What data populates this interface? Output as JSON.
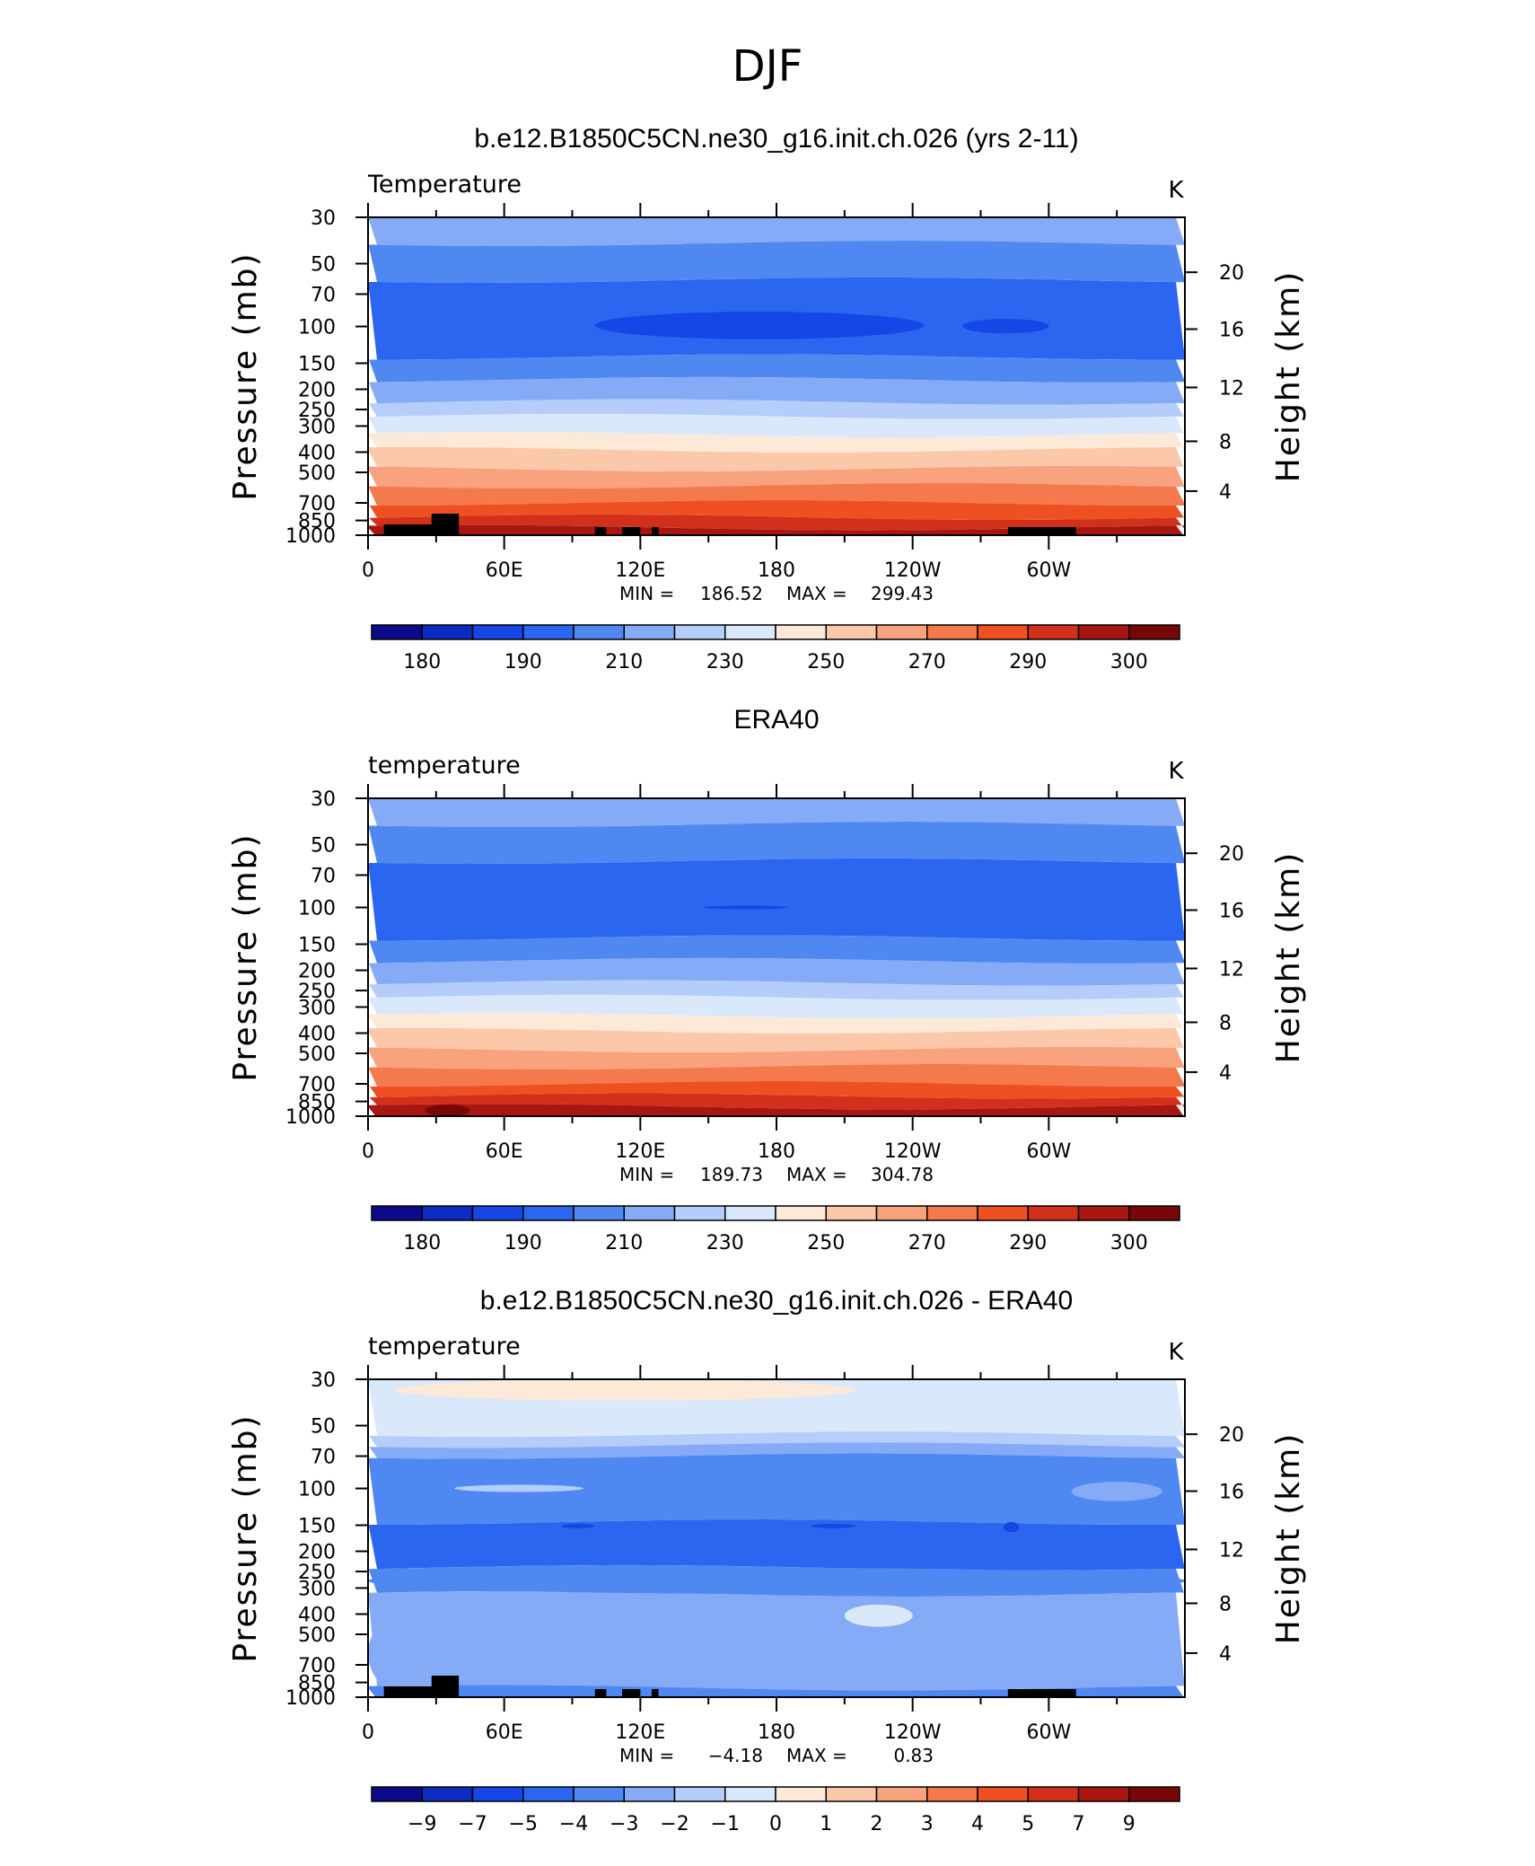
{
  "figure": {
    "title": "DJF",
    "colors": {
      "cool_to_warm": [
        "#0a0a8a",
        "#0c2bc2",
        "#1546e6",
        "#2a66f0",
        "#5088f2",
        "#86abf6",
        "#b4cdfa",
        "#dae8fc",
        "#fde9d8",
        "#fcc8aa",
        "#f8a27e",
        "#f47a4e",
        "#ef5021",
        "#d2301a",
        "#a81612",
        "#780808"
      ]
    }
  },
  "chart_data": [
    {
      "type": "contour",
      "title": "b.e12.B1850C5CN.ne30_g16.init.ch.026 (yrs 2-11)",
      "left_string": "Temperature",
      "right_string": "K",
      "xlabel": "",
      "ylabel": "Pressure (mb)",
      "ylabel_right": "Height (km)",
      "x_ticks": [
        "0",
        "60E",
        "120E",
        "180",
        "120W",
        "60W"
      ],
      "x_range": [
        0,
        360
      ],
      "y_ticks": [
        "30",
        "50",
        "70",
        "100",
        "150",
        "200",
        "250",
        "300",
        "400",
        "500",
        "700",
        "850",
        "1000"
      ],
      "y_range": [
        1000,
        30
      ],
      "y_right_ticks": [
        "20",
        "16",
        "12",
        "8",
        "4"
      ],
      "min_label": "MIN =",
      "min_value": "186.52",
      "max_label": "MAX =",
      "max_value": "299.43",
      "colorbar_ticks": [
        "180",
        "190",
        "210",
        "230",
        "250",
        "270",
        "290",
        "300"
      ],
      "levels": [
        {
          "p": [
            30,
            40
          ],
          "k": 5
        },
        {
          "p": [
            40,
            60
          ],
          "k": 4
        },
        {
          "p": [
            60,
            140
          ],
          "k": 3
        },
        {
          "p": [
            140,
            180
          ],
          "k": 4
        },
        {
          "p": [
            180,
            230
          ],
          "k": 5
        },
        {
          "p": [
            230,
            270
          ],
          "k": 6
        },
        {
          "p": [
            270,
            330
          ],
          "k": 7
        },
        {
          "p": [
            330,
            390
          ],
          "k": 8
        },
        {
          "p": [
            390,
            480
          ],
          "k": 9
        },
        {
          "p": [
            480,
            580
          ],
          "k": 10
        },
        {
          "p": [
            580,
            700
          ],
          "k": 11
        },
        {
          "p": [
            700,
            820
          ],
          "k": 12
        },
        {
          "p": [
            820,
            920
          ],
          "k": 13
        },
        {
          "p": [
            920,
            1000
          ],
          "k": 14
        }
      ],
      "blobs": [
        {
          "lon": [
            100,
            245
          ],
          "p": [
            85,
            115
          ],
          "k": 2
        },
        {
          "lon": [
            262,
            300
          ],
          "p": [
            92,
            108
          ],
          "k": 2
        }
      ],
      "topography": true
    },
    {
      "type": "contour",
      "title": "ERA40",
      "left_string": "temperature",
      "right_string": "K",
      "xlabel": "",
      "ylabel": "Pressure (mb)",
      "ylabel_right": "Height (km)",
      "x_ticks": [
        "0",
        "60E",
        "120E",
        "180",
        "120W",
        "60W"
      ],
      "x_range": [
        0,
        360
      ],
      "y_ticks": [
        "30",
        "50",
        "70",
        "100",
        "150",
        "200",
        "250",
        "300",
        "400",
        "500",
        "700",
        "850",
        "1000"
      ],
      "y_range": [
        1000,
        30
      ],
      "y_right_ticks": [
        "20",
        "16",
        "12",
        "8",
        "4"
      ],
      "min_label": "MIN =",
      "min_value": "189.73",
      "max_label": "MAX =",
      "max_value": "304.78",
      "colorbar_ticks": [
        "180",
        "190",
        "210",
        "230",
        "250",
        "270",
        "290",
        "300"
      ],
      "levels": [
        {
          "p": [
            30,
            40
          ],
          "k": 5
        },
        {
          "p": [
            40,
            60
          ],
          "k": 4
        },
        {
          "p": [
            60,
            140
          ],
          "k": 3
        },
        {
          "p": [
            140,
            180
          ],
          "k": 4
        },
        {
          "p": [
            180,
            230
          ],
          "k": 5
        },
        {
          "p": [
            230,
            270
          ],
          "k": 6
        },
        {
          "p": [
            270,
            330
          ],
          "k": 7
        },
        {
          "p": [
            330,
            390
          ],
          "k": 8
        },
        {
          "p": [
            390,
            480
          ],
          "k": 9
        },
        {
          "p": [
            480,
            580
          ],
          "k": 10
        },
        {
          "p": [
            580,
            700
          ],
          "k": 11
        },
        {
          "p": [
            700,
            800
          ],
          "k": 12
        },
        {
          "p": [
            800,
            900
          ],
          "k": 13
        },
        {
          "p": [
            900,
            1000
          ],
          "k": 14
        }
      ],
      "blobs": [
        {
          "lon": [
            148,
            185
          ],
          "p": [
            98,
            102
          ],
          "k": 2
        },
        {
          "lon": [
            25,
            45
          ],
          "p": [
            880,
            1000
          ],
          "k": 15
        }
      ],
      "topography": false
    },
    {
      "type": "contour",
      "title": "b.e12.B1850C5CN.ne30_g16.init.ch.026 - ERA40",
      "left_string": "temperature",
      "right_string": "K",
      "xlabel": "",
      "ylabel": "Pressure (mb)",
      "ylabel_right": "Height (km)",
      "x_ticks": [
        "0",
        "60E",
        "120E",
        "180",
        "120W",
        "60W"
      ],
      "x_range": [
        0,
        360
      ],
      "y_ticks": [
        "30",
        "50",
        "70",
        "100",
        "150",
        "200",
        "250",
        "300",
        "400",
        "500",
        "700",
        "850",
        "1000"
      ],
      "y_range": [
        1000,
        30
      ],
      "y_right_ticks": [
        "20",
        "16",
        "12",
        "8",
        "4"
      ],
      "min_label": "MIN =",
      "min_value": "−4.18",
      "max_label": "MAX =",
      "max_value": "0.83",
      "colorbar_ticks": [
        "−9",
        "−7",
        "−5",
        "−4",
        "−3",
        "−2",
        "−1",
        "0",
        "1",
        "2",
        "3",
        "4",
        "5",
        "7",
        "9"
      ],
      "levels": [
        {
          "p": [
            30,
            55
          ],
          "k": 7
        },
        {
          "p": [
            55,
            62
          ],
          "k": 6
        },
        {
          "p": [
            62,
            70
          ],
          "k": 5
        },
        {
          "p": [
            70,
            145
          ],
          "k": 4
        },
        {
          "p": [
            145,
            240
          ],
          "k": 3
        },
        {
          "p": [
            240,
            320
          ],
          "k": 4
        },
        {
          "p": [
            320,
            900
          ],
          "k": 5
        },
        {
          "p": [
            900,
            1000
          ],
          "k": 4
        }
      ],
      "blobs": [
        {
          "lon": [
            12,
            215
          ],
          "p": [
            30,
            38
          ],
          "k": 8
        },
        {
          "lon": [
            38,
            95
          ],
          "p": [
            96,
            104
          ],
          "k": 6
        },
        {
          "lon": [
            310,
            350
          ],
          "p": [
            93,
            115
          ],
          "k": 5
        },
        {
          "lon": [
            210,
            240
          ],
          "p": [
            360,
            460
          ],
          "k": 7
        },
        {
          "lon": [
            85,
            100
          ],
          "p": [
            148,
            155
          ],
          "k": 2
        },
        {
          "lon": [
            195,
            215
          ],
          "p": [
            148,
            155
          ],
          "k": 2
        },
        {
          "lon": [
            280,
            287
          ],
          "p": [
            145,
            162
          ],
          "k": 2
        },
        {
          "lon": [
            0,
            360
          ],
          "p": [
            240,
            320
          ],
          "k": 4
        },
        {
          "lon": [
            0,
            40
          ],
          "p": [
            380,
            1000
          ],
          "k": 5
        }
      ],
      "topography": true
    }
  ]
}
